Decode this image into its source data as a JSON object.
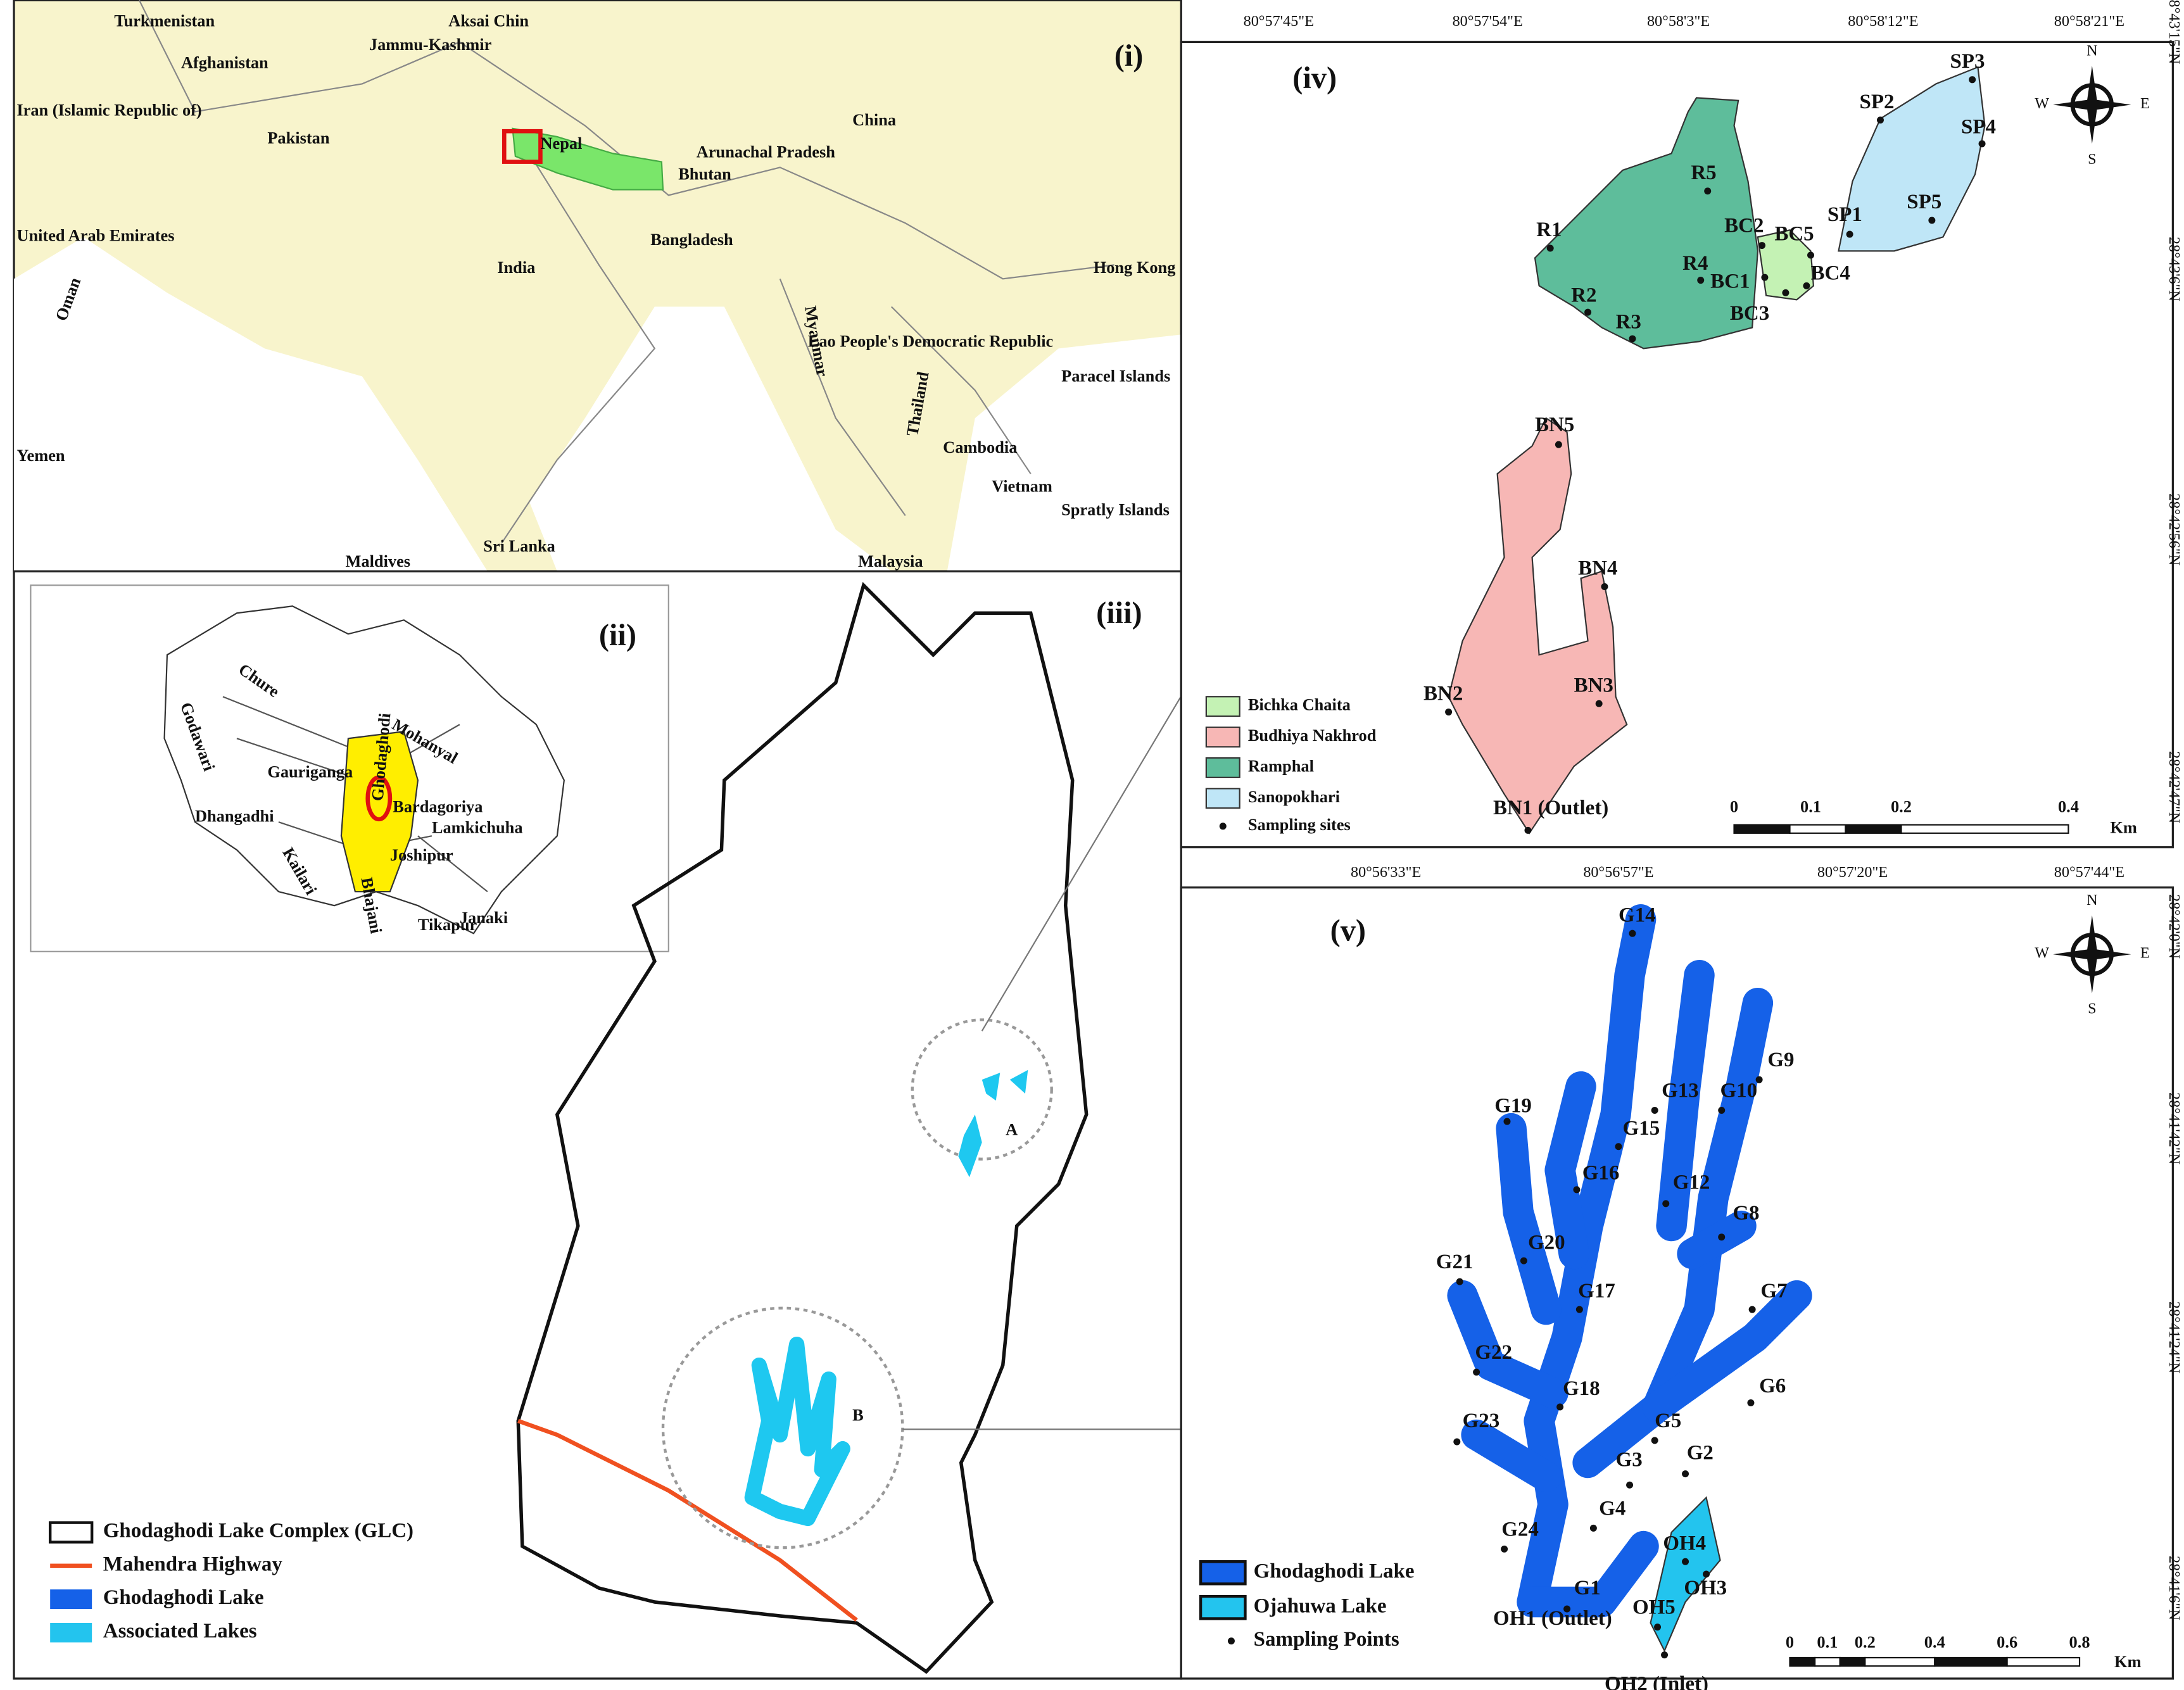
{
  "panel_i": {
    "label": "(i)",
    "places": [
      "Turkmenistan",
      "Aksai Chin",
      "Afghanistan",
      "Jammu-Kashmir",
      "Iran (Islamic Republic of)",
      "China",
      "Pakistan",
      "Nepal",
      "Arunachal Pradesh",
      "Bhutan",
      "United Arab Emirates",
      "India",
      "Bangladesh",
      "Hong Kong",
      "Oman",
      "Myanmar",
      "Lao People's Democratic Republic",
      "Paracel Islands",
      "Thailand",
      "Cambodia",
      "Yemen",
      "Vietnam",
      "Spratly Islands",
      "Sri Lanka",
      "Maldives",
      "Malaysia"
    ]
  },
  "panel_ii": {
    "label": "(ii)",
    "places": [
      "Chure",
      "Godawari",
      "Mohanyal",
      "Gauriganga",
      "Ghodaghodi",
      "Bardagoriya",
      "Dhangadhi",
      "Lamkichuha",
      "Kailari",
      "Joshipur",
      "Bhajani",
      "Janaki",
      "Tikapur"
    ]
  },
  "panel_iii": {
    "label": "(iii)",
    "areas": [
      "A",
      "B"
    ],
    "legend": [
      "Ghodaghodi Lake Complex (GLC)",
      "Mahendra Highway",
      "Ghodaghodi Lake",
      "Associated Lakes"
    ]
  },
  "panel_iv": {
    "label": "(iv)",
    "x_coords": [
      "80°57'45\"E",
      "80°57'54\"E",
      "80°58'3\"E",
      "80°58'12\"E",
      "80°58'21\"E"
    ],
    "y_coords": [
      "28°43'15\"N",
      "28°43'6\"N",
      "28°42'56\"N",
      "28°42'47\"N"
    ],
    "sites": [
      "R1",
      "R2",
      "R3",
      "R4",
      "R5",
      "BC1",
      "BC2",
      "BC3",
      "BC4",
      "BC5",
      "SP1",
      "SP2",
      "SP3",
      "SP4",
      "SP5",
      "BN1 (Outlet)",
      "BN2",
      "BN3",
      "BN4",
      "BN5"
    ],
    "legend": [
      "Bichka Chaita",
      "Budhiya Nakhrod",
      "Ramphal",
      "Sanopokhari",
      "Sampling sites"
    ],
    "scale": [
      "0",
      "0.1",
      "0.2",
      "0.4",
      "Km"
    ],
    "compass": [
      "N",
      "S",
      "E",
      "W"
    ]
  },
  "panel_v": {
    "label": "(v)",
    "x_coords": [
      "80°56'33\"E",
      "80°56'57\"E",
      "80°57'20\"E",
      "80°57'44\"E"
    ],
    "y_coords": [
      "28°42'0\"N",
      "28°41'42\"N",
      "28°41'24\"N",
      "28°41'6\"N"
    ],
    "sites": [
      "G1",
      "G2",
      "G3",
      "G4",
      "G5",
      "G6",
      "G7",
      "G8",
      "G9",
      "G10",
      "G12",
      "G13",
      "G14",
      "G15",
      "G16",
      "G17",
      "G18",
      "G19",
      "G20",
      "G21",
      "G22",
      "G23",
      "G24",
      "OH1 (Outlet)",
      "OH2 (Inlet)",
      "OH3",
      "OH4",
      "OH5"
    ],
    "legend": [
      "Ghodaghodi Lake",
      "Ojahuwa Lake",
      "Sampling Points"
    ],
    "scale": [
      "0",
      "0.1",
      "0.2",
      "0.4",
      "0.6",
      "0.8",
      "Km"
    ],
    "compass": [
      "N",
      "S",
      "E",
      "W"
    ]
  }
}
